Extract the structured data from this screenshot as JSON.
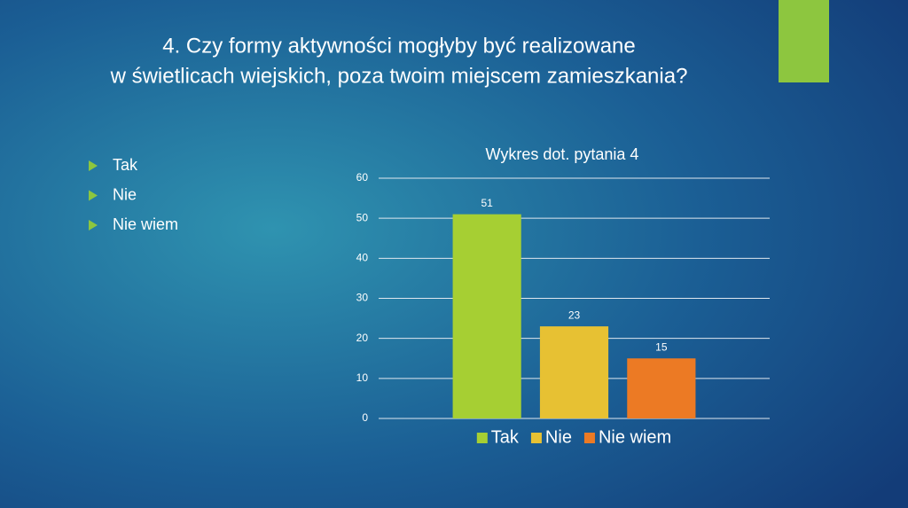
{
  "slide": {
    "title": [
      "4. Czy formy aktywności mogłyby być realizowane",
      "w świetlicach wiejskich, poza twoim miejscem zamieszkania?"
    ],
    "bullets": [
      "Tak",
      "Nie",
      "Nie wiem"
    ]
  },
  "chart_data": {
    "type": "bar",
    "title": "Wykres dot. pytania 4",
    "categories": [
      null
    ],
    "series": [
      {
        "name": "Tak",
        "color": "#a6cf33",
        "values": [
          51
        ]
      },
      {
        "name": "Nie",
        "color": "#e7c133",
        "values": [
          23
        ]
      },
      {
        "name": "Nie wiem",
        "color": "#ec7a24",
        "values": [
          15
        ]
      }
    ],
    "ylim": [
      0,
      60
    ],
    "yticks": [
      0,
      10,
      20,
      30,
      40,
      50,
      60
    ],
    "grid": true,
    "data_labels": true,
    "legend": "bottom"
  }
}
